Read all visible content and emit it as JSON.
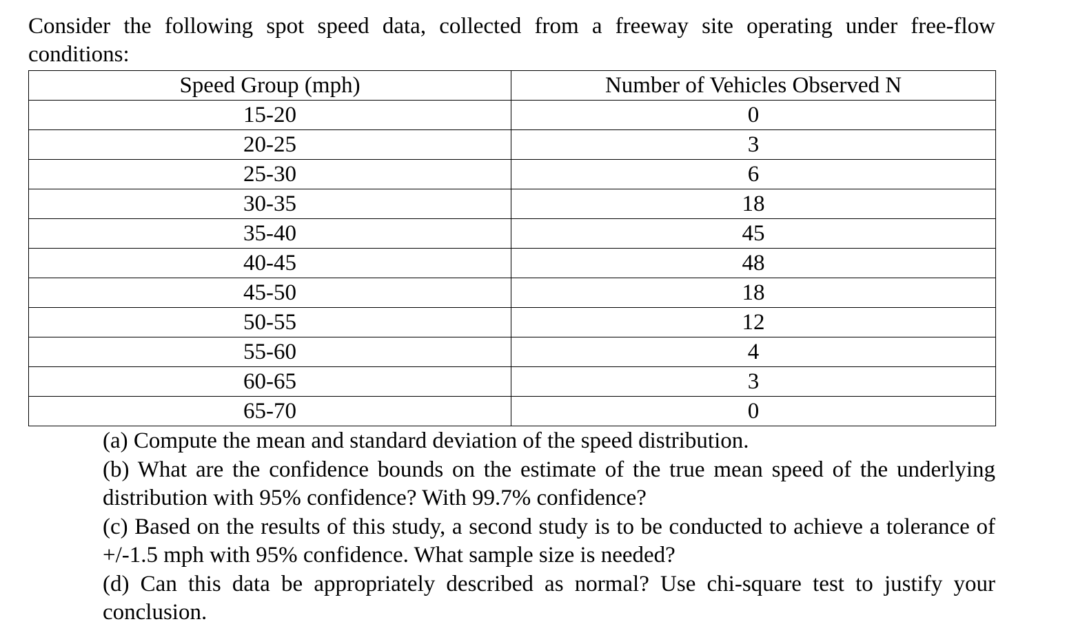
{
  "intro": "Consider the following spot speed data, collected from a freeway site operating under free-flow conditions:",
  "table": {
    "headers": [
      "Speed Group (mph)",
      "Number of Vehicles Observed N"
    ],
    "rows": [
      [
        "15-20",
        "0"
      ],
      [
        "20-25",
        "3"
      ],
      [
        "25-30",
        "6"
      ],
      [
        "30-35",
        "18"
      ],
      [
        "35-40",
        "45"
      ],
      [
        "40-45",
        "48"
      ],
      [
        "45-50",
        "18"
      ],
      [
        "50-55",
        "12"
      ],
      [
        "55-60",
        "4"
      ],
      [
        "60-65",
        "3"
      ],
      [
        "65-70",
        "0"
      ]
    ]
  },
  "questions": [
    "(a) Compute the mean and standard deviation of the speed distribution.",
    "(b) What are the confidence bounds on the estimate of the true mean speed of the underlying distribution with 95% confidence? With 99.7% confidence?",
    "(c) Based on the results of this study, a second study is to be conducted to achieve a tolerance of +/-1.5 mph with 95% confidence. What sample size is needed?",
    "(d) Can this data be appropriately described as normal? Use chi-square test to justify your conclusion."
  ]
}
